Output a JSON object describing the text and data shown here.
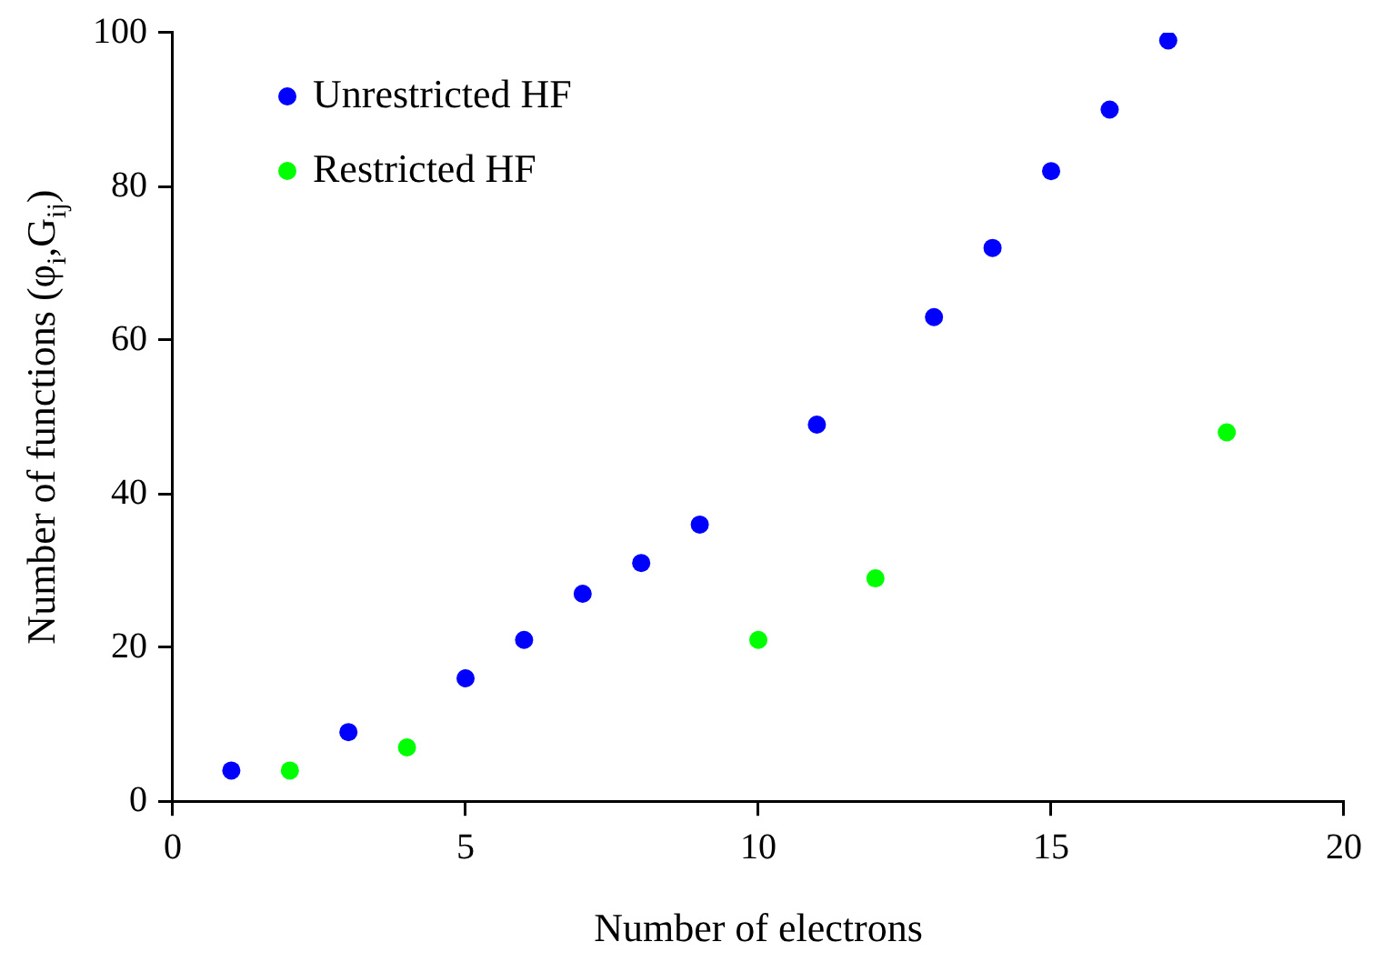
{
  "chart_data": {
    "type": "scatter",
    "xlabel": "Number of electrons",
    "ylabel": "Number of functions (φ$_{i}$,G$_{ij}$)",
    "xlim": [
      0,
      20
    ],
    "xticks": [
      0,
      5,
      10,
      15,
      20
    ],
    "ylim": [
      0,
      100
    ],
    "yticks": [
      0,
      20,
      40,
      60,
      80,
      100
    ],
    "grid": false,
    "legend": "top left",
    "marker": "circle",
    "series": [
      {
        "name": "Unrestricted HF",
        "color": "#0000ff",
        "x": [
          1,
          3,
          5,
          6,
          7,
          8,
          9,
          11,
          13,
          14,
          15,
          16,
          17
        ],
        "values": [
          4,
          9,
          16,
          21,
          27,
          31,
          36,
          49,
          63,
          72,
          82,
          90,
          99
        ]
      },
      {
        "name": "Restricted HF",
        "color": "#00ff00",
        "x": [
          2,
          4,
          10,
          12,
          18
        ],
        "values": [
          4,
          7,
          21,
          29,
          48
        ]
      }
    ]
  }
}
